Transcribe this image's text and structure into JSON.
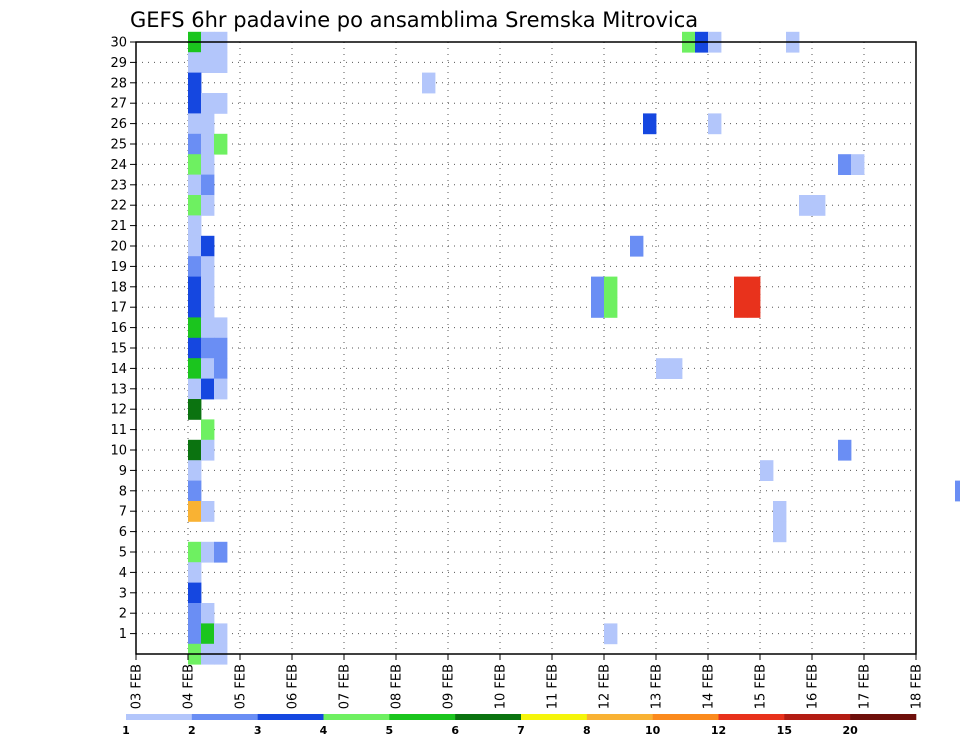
{
  "chart_data": {
    "type": "heatmap",
    "title": "GEFS 6hr padavine po ansamblima Sremska Mitrovica",
    "xlabel": "",
    "ylabel": "",
    "x_tick_labels": [
      "03 FEB",
      "04 FEB",
      "05 FEB",
      "06 FEB",
      "07 FEB",
      "08 FEB",
      "09 FEB",
      "10 FEB",
      "11 FEB",
      "12 FEB",
      "13 FEB",
      "14 FEB",
      "15 FEB",
      "16 FEB",
      "17 FEB",
      "18 FEB"
    ],
    "y_tick_labels": [
      "1",
      "2",
      "3",
      "4",
      "5",
      "6",
      "7",
      "8",
      "9",
      "10",
      "11",
      "12",
      "13",
      "14",
      "15",
      "16",
      "17",
      "18",
      "19",
      "20",
      "21",
      "22",
      "23",
      "24",
      "25",
      "26",
      "27",
      "28",
      "29",
      "30"
    ],
    "xlim_days": [
      3,
      18
    ],
    "ylim_members": [
      0,
      30
    ],
    "time_step_hours": 6,
    "grid": "dotted",
    "colorbar": {
      "levels": [
        "1",
        "2",
        "3",
        "4",
        "5",
        "6",
        "7",
        "8",
        "10",
        "12",
        "15",
        "20"
      ],
      "colors": [
        "#b3c6fb",
        "#6a8ef4",
        "#1547e0",
        "#6ef061",
        "#1bc51e",
        "#0b7310",
        "#f5f50a",
        "#f9b233",
        "#fb8a1d",
        "#e8321c",
        "#b31c13",
        "#6e0f0b"
      ]
    },
    "cells": [
      {
        "member": 30,
        "step": 0,
        "c": 4
      },
      {
        "member": 30,
        "step": 1,
        "c": 0
      },
      {
        "member": 30,
        "step": 2,
        "c": 0
      },
      {
        "member": 30,
        "step": 38,
        "c": 3
      },
      {
        "member": 30,
        "step": 39,
        "c": 2
      },
      {
        "member": 30,
        "step": 40,
        "c": 0
      },
      {
        "member": 30,
        "step": 46,
        "c": 0
      },
      {
        "member": 29,
        "step": 0,
        "c": 0
      },
      {
        "member": 29,
        "step": 1,
        "c": 0
      },
      {
        "member": 29,
        "step": 2,
        "c": 0
      },
      {
        "member": 28,
        "step": 0,
        "c": 2
      },
      {
        "member": 28,
        "step": 18,
        "c": 0
      },
      {
        "member": 27,
        "step": 0,
        "c": 2
      },
      {
        "member": 27,
        "step": 1,
        "c": 0
      },
      {
        "member": 27,
        "step": 2,
        "c": 0
      },
      {
        "member": 26,
        "step": 0,
        "c": 0
      },
      {
        "member": 26,
        "step": 1,
        "c": 0
      },
      {
        "member": 26,
        "step": 35,
        "c": 2
      },
      {
        "member": 26,
        "step": 40,
        "c": 0
      },
      {
        "member": 25,
        "step": 0,
        "c": 1
      },
      {
        "member": 25,
        "step": 1,
        "c": 0
      },
      {
        "member": 25,
        "step": 2,
        "c": 3
      },
      {
        "member": 24,
        "step": 0,
        "c": 3
      },
      {
        "member": 24,
        "step": 1,
        "c": 0
      },
      {
        "member": 24,
        "step": 50,
        "c": 1
      },
      {
        "member": 24,
        "step": 51,
        "c": 0
      },
      {
        "member": 23,
        "step": 0,
        "c": 0
      },
      {
        "member": 23,
        "step": 1,
        "c": 1
      },
      {
        "member": 22,
        "step": 0,
        "c": 3
      },
      {
        "member": 22,
        "step": 1,
        "c": 0
      },
      {
        "member": 22,
        "step": 47,
        "c": 0
      },
      {
        "member": 22,
        "step": 48,
        "c": 0
      },
      {
        "member": 21,
        "step": 0,
        "c": 0
      },
      {
        "member": 20,
        "step": 0,
        "c": 0
      },
      {
        "member": 20,
        "step": 1,
        "c": 2
      },
      {
        "member": 20,
        "step": 34,
        "c": 1
      },
      {
        "member": 19,
        "step": 0,
        "c": 1
      },
      {
        "member": 19,
        "step": 1,
        "c": 0
      },
      {
        "member": 18,
        "step": 0,
        "c": 2
      },
      {
        "member": 18,
        "step": 1,
        "c": 0
      },
      {
        "member": 18,
        "step": 31,
        "c": 1
      },
      {
        "member": 18,
        "step": 32,
        "c": 3
      },
      {
        "member": 18,
        "step": 42,
        "c": 9
      },
      {
        "member": 18,
        "step": 43,
        "c": 9
      },
      {
        "member": 17,
        "step": 0,
        "c": 2
      },
      {
        "member": 17,
        "step": 1,
        "c": 0
      },
      {
        "member": 17,
        "step": 31,
        "c": 1
      },
      {
        "member": 17,
        "step": 32,
        "c": 3
      },
      {
        "member": 17,
        "step": 42,
        "c": 9
      },
      {
        "member": 17,
        "step": 43,
        "c": 9
      },
      {
        "member": 16,
        "step": 0,
        "c": 4
      },
      {
        "member": 16,
        "step": 1,
        "c": 0
      },
      {
        "member": 16,
        "step": 2,
        "c": 0
      },
      {
        "member": 15,
        "step": 0,
        "c": 2
      },
      {
        "member": 15,
        "step": 1,
        "c": 1
      },
      {
        "member": 15,
        "step": 2,
        "c": 1
      },
      {
        "member": 14,
        "step": 0,
        "c": 4
      },
      {
        "member": 14,
        "step": 1,
        "c": 0
      },
      {
        "member": 14,
        "step": 2,
        "c": 1
      },
      {
        "member": 14,
        "step": 36,
        "c": 0
      },
      {
        "member": 14,
        "step": 37,
        "c": 0
      },
      {
        "member": 13,
        "step": 0,
        "c": 0
      },
      {
        "member": 13,
        "step": 1,
        "c": 2
      },
      {
        "member": 13,
        "step": 2,
        "c": 0
      },
      {
        "member": 13,
        "step": 60,
        "c": 0
      },
      {
        "member": 12,
        "step": 0,
        "c": 5
      },
      {
        "member": 11,
        "step": 1,
        "c": 3
      },
      {
        "member": 10,
        "step": 0,
        "c": 5
      },
      {
        "member": 10,
        "step": 1,
        "c": 0
      },
      {
        "member": 10,
        "step": 50,
        "c": 1
      },
      {
        "member": 10,
        "step": 60,
        "c": 1
      },
      {
        "member": 9,
        "step": 0,
        "c": 0
      },
      {
        "member": 9,
        "step": 44,
        "c": 0
      },
      {
        "member": 8,
        "step": 0,
        "c": 1
      },
      {
        "member": 8,
        "step": 59,
        "c": 1
      },
      {
        "member": 8,
        "step": 60,
        "c": 2
      },
      {
        "member": 7,
        "step": 0,
        "c": 7
      },
      {
        "member": 7,
        "step": 1,
        "c": 0
      },
      {
        "member": 7,
        "step": 45,
        "c": 0
      },
      {
        "member": 6,
        "step": 45,
        "c": 0
      },
      {
        "member": 5,
        "step": 0,
        "c": 3
      },
      {
        "member": 5,
        "step": 1,
        "c": 0
      },
      {
        "member": 5,
        "step": 2,
        "c": 1
      },
      {
        "member": 4,
        "step": 0,
        "c": 0
      },
      {
        "member": 3,
        "step": 0,
        "c": 2
      },
      {
        "member": 2,
        "step": 0,
        "c": 1
      },
      {
        "member": 2,
        "step": 1,
        "c": 0
      },
      {
        "member": 1,
        "step": 0,
        "c": 1
      },
      {
        "member": 1,
        "step": 1,
        "c": 4
      },
      {
        "member": 1,
        "step": 2,
        "c": 0
      },
      {
        "member": 1,
        "step": 32,
        "c": 0
      },
      {
        "member": 0,
        "step": 0,
        "c": 3
      },
      {
        "member": 0,
        "step": 1,
        "c": 0
      },
      {
        "member": 0,
        "step": 2,
        "c": 0
      }
    ]
  }
}
